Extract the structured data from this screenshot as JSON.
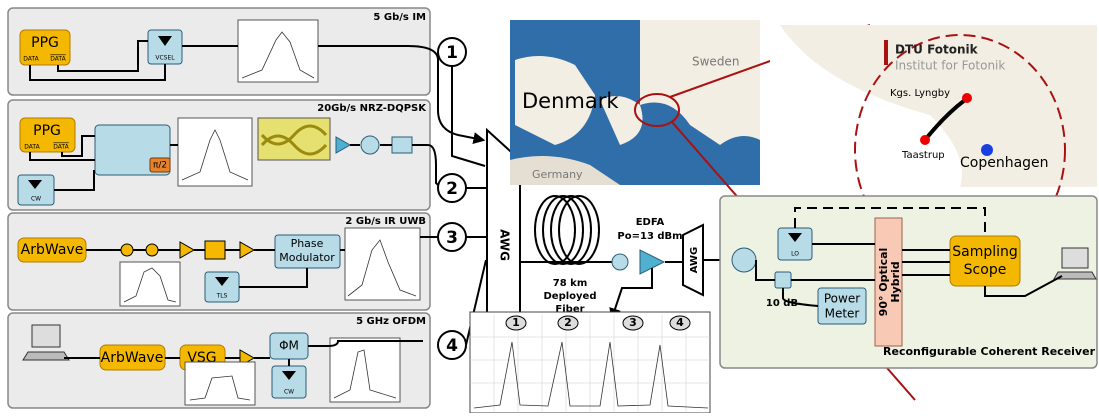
{
  "panels": [
    {
      "title": "5 Gb/s IM",
      "labels": [
        "PPG",
        "DATA",
        "DATA",
        "VCSEL"
      ]
    },
    {
      "title": "20Gb/s NRZ-DQPSK",
      "labels": [
        "PPG",
        "DATA",
        "DATA",
        "π/2",
        "CW"
      ]
    },
    {
      "title": "2 Gb/s IR UWB",
      "labels": [
        "ArbWave",
        [
          "Phase",
          "Modulator"
        ],
        "TLS"
      ]
    },
    {
      "title": "5 GHz OFDM",
      "labels": [
        "ArbWave",
        "VSG",
        "ΦM",
        "CW"
      ]
    }
  ],
  "channels": [
    "1",
    "2",
    "3",
    "4"
  ],
  "link": {
    "awg": "AWG",
    "fiber": [
      "78 km",
      "Deployed",
      "Fiber"
    ],
    "edfa": "EDFA",
    "power": "Po=13 dBm",
    "awg2": "AWG"
  },
  "spectrum": {
    "channels": [
      "1",
      "2",
      "3",
      "4"
    ]
  },
  "map": {
    "sweden": "Sweden",
    "denmark": "Denmark",
    "germany": "Germany",
    "dtu": "DTU Fotonik",
    "institut": "Institut for Fotonik",
    "lyngby": "Kgs. Lyngby",
    "taastrup": "Taastrup",
    "copenhagen": "Copenhagen"
  },
  "receiver": {
    "lo": "LO",
    "coupler": "10 dB",
    "power_meter": [
      "Power",
      "Meter"
    ],
    "hybrid": [
      "90° Optical",
      "Hybrid"
    ],
    "scope": [
      "Sampling",
      "Scope"
    ],
    "title": "Reconfigurable Coherent Receiver"
  }
}
